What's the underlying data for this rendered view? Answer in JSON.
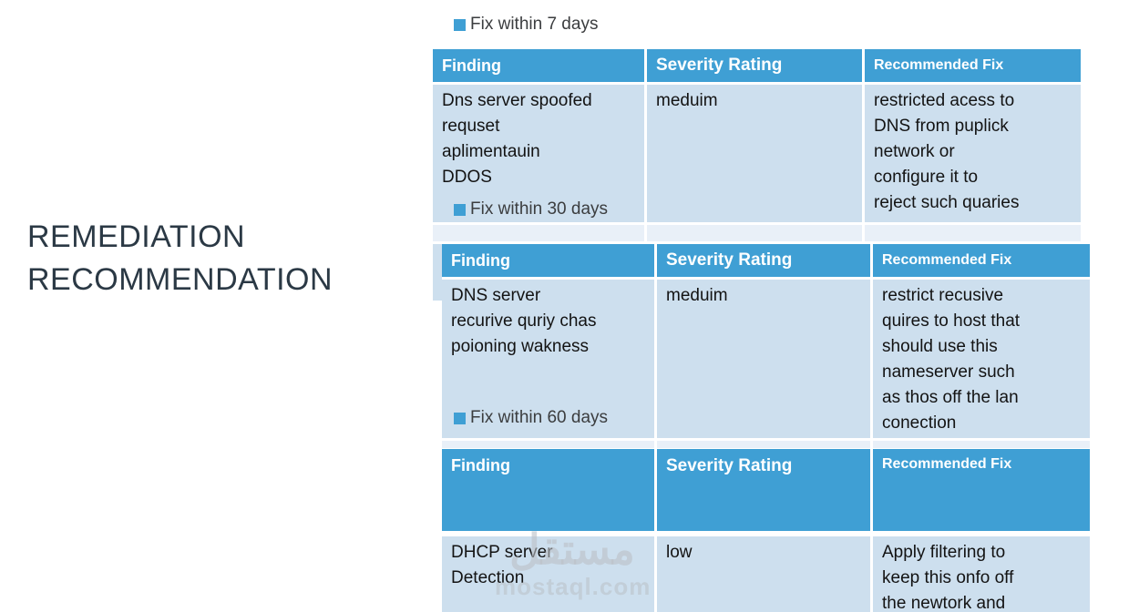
{
  "slide": {
    "title": "REMEDIATION RECOMMENDATION"
  },
  "legends": [
    {
      "label": "Fix within 7 days"
    },
    {
      "label": "Fix within 30 days"
    },
    {
      "label": "Fix within 60 days"
    }
  ],
  "tables": [
    {
      "headers": [
        "Finding",
        "Severity Rating",
        "Recommended Fix"
      ],
      "row": {
        "finding": "Dns server spoofed\nrequset\naplimentauin\nDDOS",
        "severity": "meduim",
        "fix": "restricted acess to\nDNS from puplick\nnetwork or\nconfigure it to\nreject such quaries"
      }
    },
    {
      "headers": [
        "Finding",
        "Severity Rating",
        "Recommended Fix"
      ],
      "row": {
        "finding": "DNS server\nrecurive quriy chas\npoioning wakness",
        "severity": "meduim",
        "fix": "restrict recusive\nquires to host that\nshould use this\nnameserver such\nas thos off the lan\nconection"
      }
    },
    {
      "headers": [
        "Finding",
        "Severity Rating",
        "Recommended Fix"
      ],
      "row": {
        "finding": "DHCP server\nDetection",
        "severity": "low",
        "fix": "Apply filtering to\nkeep this onfo off\nthe newtork and"
      }
    }
  ],
  "watermark": {
    "arabic": "مستقل",
    "domain": "mostaql.com"
  },
  "colors": {
    "header_blue": "#3f9fd4",
    "row_blue": "#cddfee",
    "row_light": "#e9f0f8",
    "title_color": "#2b3945"
  }
}
